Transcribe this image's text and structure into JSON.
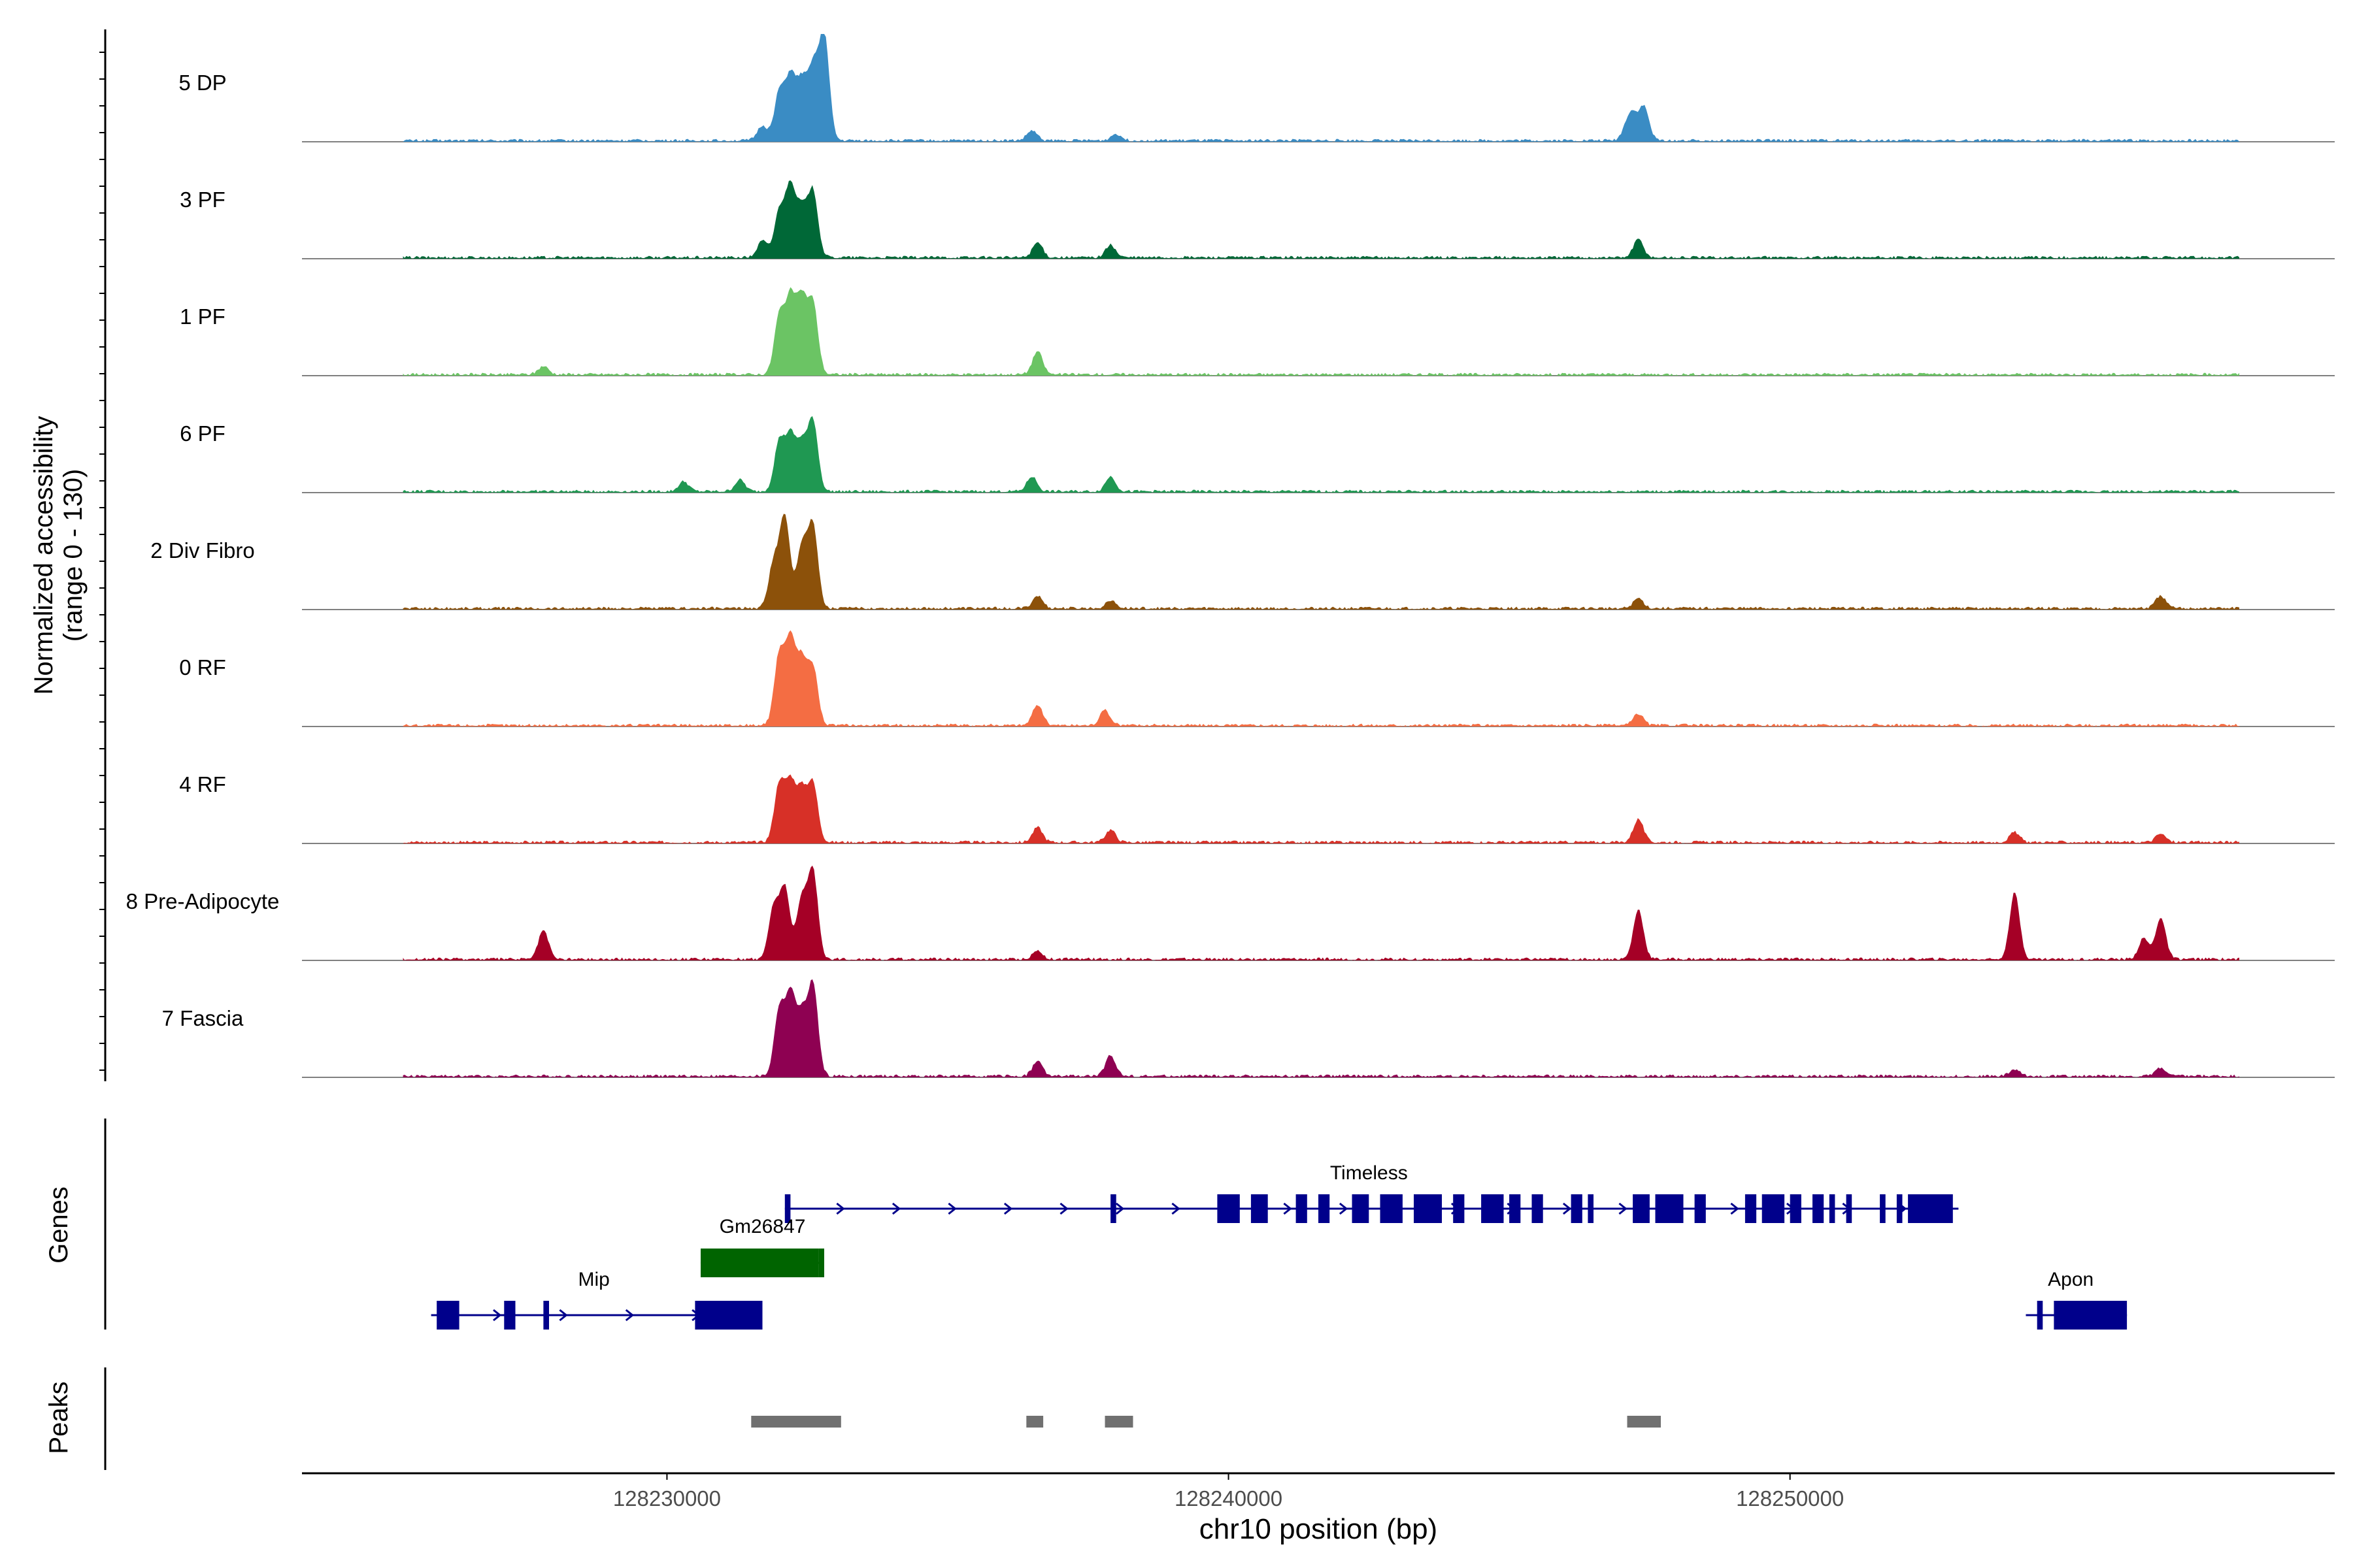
{
  "chart_data": {
    "type": "area",
    "title": "",
    "xlabel": "chr10 position (bp)",
    "xlim": [
      128223500,
      128259700
    ],
    "x_ticks": [
      128230000,
      128240000,
      128250000
    ],
    "x_tick_labels": [
      "128230000",
      "128240000",
      "128250000"
    ],
    "coverage_ylabel_line1": "Normalized accessibility",
    "coverage_ylabel_line2": "(range 0 - 130)",
    "ylim": [
      0,
      130
    ],
    "genes_label": "Genes",
    "peaks_label": "Peaks",
    "series": [
      {
        "name": "5 DP",
        "color": "#3A8CC4",
        "peaks": [
          [
            128232000,
            58
          ],
          [
            128232200,
            75
          ],
          [
            128232400,
            68
          ],
          [
            128232600,
            85
          ],
          [
            128232800,
            128
          ],
          [
            128231700,
            18
          ],
          [
            128236500,
            12
          ],
          [
            128238000,
            8
          ],
          [
            128247200,
            25
          ],
          [
            128247400,
            40
          ],
          [
            128247100,
            15
          ]
        ]
      },
      {
        "name": "3 PF",
        "color": "#006837",
        "peaks": [
          [
            128232000,
            55
          ],
          [
            128232200,
            85
          ],
          [
            128232400,
            55
          ],
          [
            128232600,
            80
          ],
          [
            128231700,
            20
          ],
          [
            128236600,
            18
          ],
          [
            128237900,
            15
          ],
          [
            128247300,
            22
          ]
        ]
      },
      {
        "name": "1 PF",
        "color": "#6BC464",
        "peaks": [
          [
            128232000,
            70
          ],
          [
            128232200,
            90
          ],
          [
            128232400,
            88
          ],
          [
            128232600,
            85
          ],
          [
            128236600,
            28
          ],
          [
            128227800,
            10
          ]
        ]
      },
      {
        "name": "6 PF",
        "color": "#1F9852",
        "peaks": [
          [
            128232000,
            60
          ],
          [
            128232200,
            65
          ],
          [
            128232400,
            55
          ],
          [
            128232600,
            85
          ],
          [
            128230300,
            12
          ],
          [
            128231300,
            14
          ],
          [
            128236500,
            18
          ],
          [
            128237900,
            18
          ]
        ]
      },
      {
        "name": "2 Div Fibro",
        "color": "#8C510A",
        "peaks": [
          [
            128231900,
            55
          ],
          [
            128232100,
            110
          ],
          [
            128232400,
            75
          ],
          [
            128232600,
            100
          ],
          [
            128236600,
            15
          ],
          [
            128237900,
            10
          ],
          [
            128247300,
            12
          ],
          [
            128256600,
            15
          ]
        ]
      },
      {
        "name": "0 RF",
        "color": "#F46D43",
        "peaks": [
          [
            128232000,
            85
          ],
          [
            128232200,
            100
          ],
          [
            128232400,
            75
          ],
          [
            128232600,
            70
          ],
          [
            128236600,
            25
          ],
          [
            128237800,
            18
          ],
          [
            128247300,
            14
          ]
        ]
      },
      {
        "name": "4 RF",
        "color": "#D73027",
        "peaks": [
          [
            128232000,
            70
          ],
          [
            128232200,
            70
          ],
          [
            128232400,
            60
          ],
          [
            128232600,
            70
          ],
          [
            128236600,
            18
          ],
          [
            128237900,
            15
          ],
          [
            128247300,
            28
          ],
          [
            128254000,
            12
          ],
          [
            128256600,
            10
          ]
        ]
      },
      {
        "name": "8 Pre-Adipocyte",
        "color": "#A50026",
        "peaks": [
          [
            128231900,
            62
          ],
          [
            128232100,
            85
          ],
          [
            128232400,
            72
          ],
          [
            128232600,
            105
          ],
          [
            128227800,
            35
          ],
          [
            128236600,
            10
          ],
          [
            128247300,
            60
          ],
          [
            128254000,
            80
          ],
          [
            128256600,
            50
          ],
          [
            128256300,
            25
          ]
        ]
      },
      {
        "name": "7 Fascia",
        "color": "#8E0152",
        "peaks": [
          [
            128232000,
            80
          ],
          [
            128232200,
            95
          ],
          [
            128232400,
            70
          ],
          [
            128232600,
            110
          ],
          [
            128236600,
            18
          ],
          [
            128237900,
            25
          ],
          [
            128254000,
            8
          ],
          [
            128256600,
            10
          ]
        ]
      }
    ],
    "genes": [
      {
        "name": "Timeless",
        "color": "#00008B",
        "start": 128232100,
        "end": 128253000,
        "strand": "+",
        "exons": [
          [
            128232100,
            128232200
          ],
          [
            128237900,
            128238000
          ],
          [
            128239800,
            128240200
          ],
          [
            128240400,
            128240700
          ],
          [
            128241200,
            128241400
          ],
          [
            128241600,
            128241800
          ],
          [
            128242200,
            128242500
          ],
          [
            128242700,
            128243100
          ],
          [
            128243300,
            128243800
          ],
          [
            128244000,
            128244200
          ],
          [
            128244500,
            128244900
          ],
          [
            128245000,
            128245200
          ],
          [
            128245400,
            128245600
          ],
          [
            128246100,
            128246300
          ],
          [
            128246400,
            128246500
          ],
          [
            128247200,
            128247500
          ],
          [
            128247600,
            128248100
          ],
          [
            128248300,
            128248500
          ],
          [
            128249200,
            128249400
          ],
          [
            128249500,
            128249900
          ],
          [
            128250000,
            128250200
          ],
          [
            128250400,
            128250600
          ],
          [
            128250700,
            128250800
          ],
          [
            128251000,
            128251100
          ],
          [
            128251600,
            128251700
          ],
          [
            128251900,
            128252000
          ],
          [
            128252100,
            128252900
          ]
        ]
      },
      {
        "name": "Gm26847",
        "color": "#006400",
        "start": 128230600,
        "end": 128232800,
        "strand": "-",
        "exons": [
          [
            128230600,
            128232700
          ],
          [
            128232700,
            128232800
          ]
        ]
      },
      {
        "name": "Mip",
        "color": "#00008B",
        "start": 128225800,
        "end": 128231700,
        "strand": "+",
        "exons": [
          [
            128225900,
            128226300
          ],
          [
            128227100,
            128227300
          ],
          [
            128227800,
            128227900
          ],
          [
            128230500,
            128231700
          ]
        ]
      },
      {
        "name": "Apon",
        "color": "#00008B",
        "start": 128254200,
        "end": 128256000,
        "strand": "+",
        "exons": [
          [
            128254400,
            128254500
          ],
          [
            128254700,
            128256000
          ]
        ]
      }
    ],
    "peak_regions": [
      [
        128231500,
        128233100
      ],
      [
        128236400,
        128236700
      ],
      [
        128237800,
        128238300
      ],
      [
        128247100,
        128247700
      ]
    ],
    "peak_color": "#707070"
  }
}
